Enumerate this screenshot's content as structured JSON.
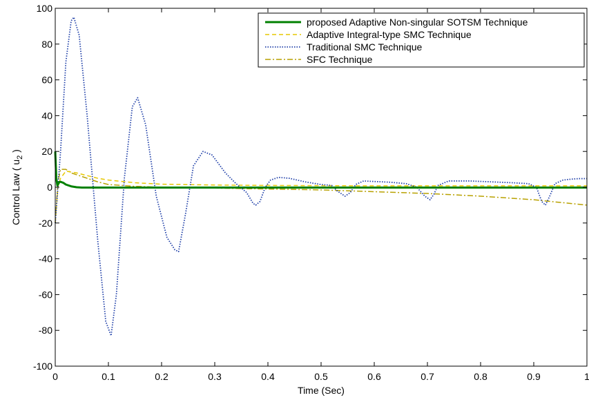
{
  "chart_data": {
    "type": "line",
    "xlabel": "Time (Sec)",
    "ylabel": "Control Law ( u",
    "ylabel_subscript": "2",
    "ylabel_suffix": " )",
    "xlim": [
      0,
      1
    ],
    "ylim": [
      -100,
      100
    ],
    "x_ticks": [
      "0",
      "0.1",
      "0.2",
      "0.3",
      "0.4",
      "0.5",
      "0.6",
      "0.7",
      "0.8",
      "0.9",
      "1"
    ],
    "y_ticks": [
      "100",
      "80",
      "60",
      "40",
      "20",
      "0",
      "-20",
      "-40",
      "-60",
      "-80",
      "-100"
    ],
    "grid": false,
    "legend_position": "top-right",
    "series": [
      {
        "name": "proposed Adaptive Non-singular SOTSM Technique",
        "color": "#008000",
        "dash": "solid",
        "x": [
          0,
          0.002,
          0.004,
          0.006,
          0.008,
          0.01,
          0.015,
          0.02,
          0.03,
          0.04,
          0.05,
          0.1,
          0.2,
          0.4,
          0.6,
          0.8,
          1.0
        ],
        "y": [
          20,
          5,
          1,
          2,
          3,
          3,
          2.5,
          1.5,
          0.5,
          0,
          -0.2,
          -0.2,
          -0.2,
          -0.2,
          -0.2,
          -0.2,
          -0.2
        ]
      },
      {
        "name": "Adaptive Integral-type SMC Technique",
        "color": "#e6c700",
        "dash": "dashed",
        "x": [
          0,
          0.005,
          0.01,
          0.02,
          0.04,
          0.06,
          0.08,
          0.1,
          0.15,
          0.2,
          0.3,
          0.4,
          0.5,
          0.6,
          0.7,
          0.8,
          0.9,
          1.0
        ],
        "y": [
          -20,
          0,
          5,
          9,
          8,
          6.5,
          5,
          4,
          2.5,
          1.7,
          1.2,
          1,
          0.9,
          0.8,
          0.8,
          0.8,
          0.8,
          0.8
        ]
      },
      {
        "name": "Traditional SMC Technique",
        "color": "#1f3fa8",
        "dash": "dotted",
        "x": [
          0,
          0.01,
          0.02,
          0.03,
          0.035,
          0.045,
          0.06,
          0.08,
          0.095,
          0.105,
          0.115,
          0.13,
          0.145,
          0.155,
          0.17,
          0.19,
          0.21,
          0.225,
          0.232,
          0.245,
          0.26,
          0.278,
          0.295,
          0.32,
          0.34,
          0.36,
          0.372,
          0.377,
          0.385,
          0.395,
          0.405,
          0.42,
          0.44,
          0.47,
          0.5,
          0.52,
          0.53,
          0.545,
          0.555,
          0.565,
          0.58,
          0.6,
          0.63,
          0.66,
          0.68,
          0.695,
          0.705,
          0.712,
          0.72,
          0.74,
          0.78,
          0.82,
          0.86,
          0.89,
          0.905,
          0.915,
          0.922,
          0.93,
          0.94,
          0.955,
          0.97,
          0.985,
          1.0
        ],
        "y": [
          -20,
          20,
          70,
          93,
          95,
          85,
          40,
          -30,
          -75,
          -83,
          -60,
          5,
          45,
          50,
          35,
          -5,
          -28,
          -35,
          -36,
          -15,
          12,
          20,
          18,
          8,
          2,
          -3,
          -9,
          -10,
          -8,
          0,
          4,
          5.5,
          5,
          3,
          1.5,
          1,
          -2,
          -5,
          -3,
          1.5,
          3.5,
          3.2,
          2.8,
          2,
          0,
          -5,
          -7,
          -4,
          1,
          3.5,
          3.5,
          3,
          2.5,
          2,
          0,
          -8,
          -10,
          -5,
          2,
          4,
          4.5,
          4.8,
          4.8
        ]
      },
      {
        "name": "SFC Technique",
        "color": "#b8a100",
        "dash": "dashdot",
        "x": [
          0,
          0.005,
          0.01,
          0.02,
          0.03,
          0.05,
          0.08,
          0.1,
          0.15,
          0.2,
          0.3,
          0.4,
          0.5,
          0.6,
          0.7,
          0.8,
          0.9,
          1.0
        ],
        "y": [
          -20,
          3,
          10,
          10,
          8,
          6,
          3,
          1.5,
          0.5,
          0,
          -0.5,
          -1,
          -1.5,
          -2.5,
          -3.5,
          -5,
          -7,
          -10
        ]
      }
    ]
  }
}
